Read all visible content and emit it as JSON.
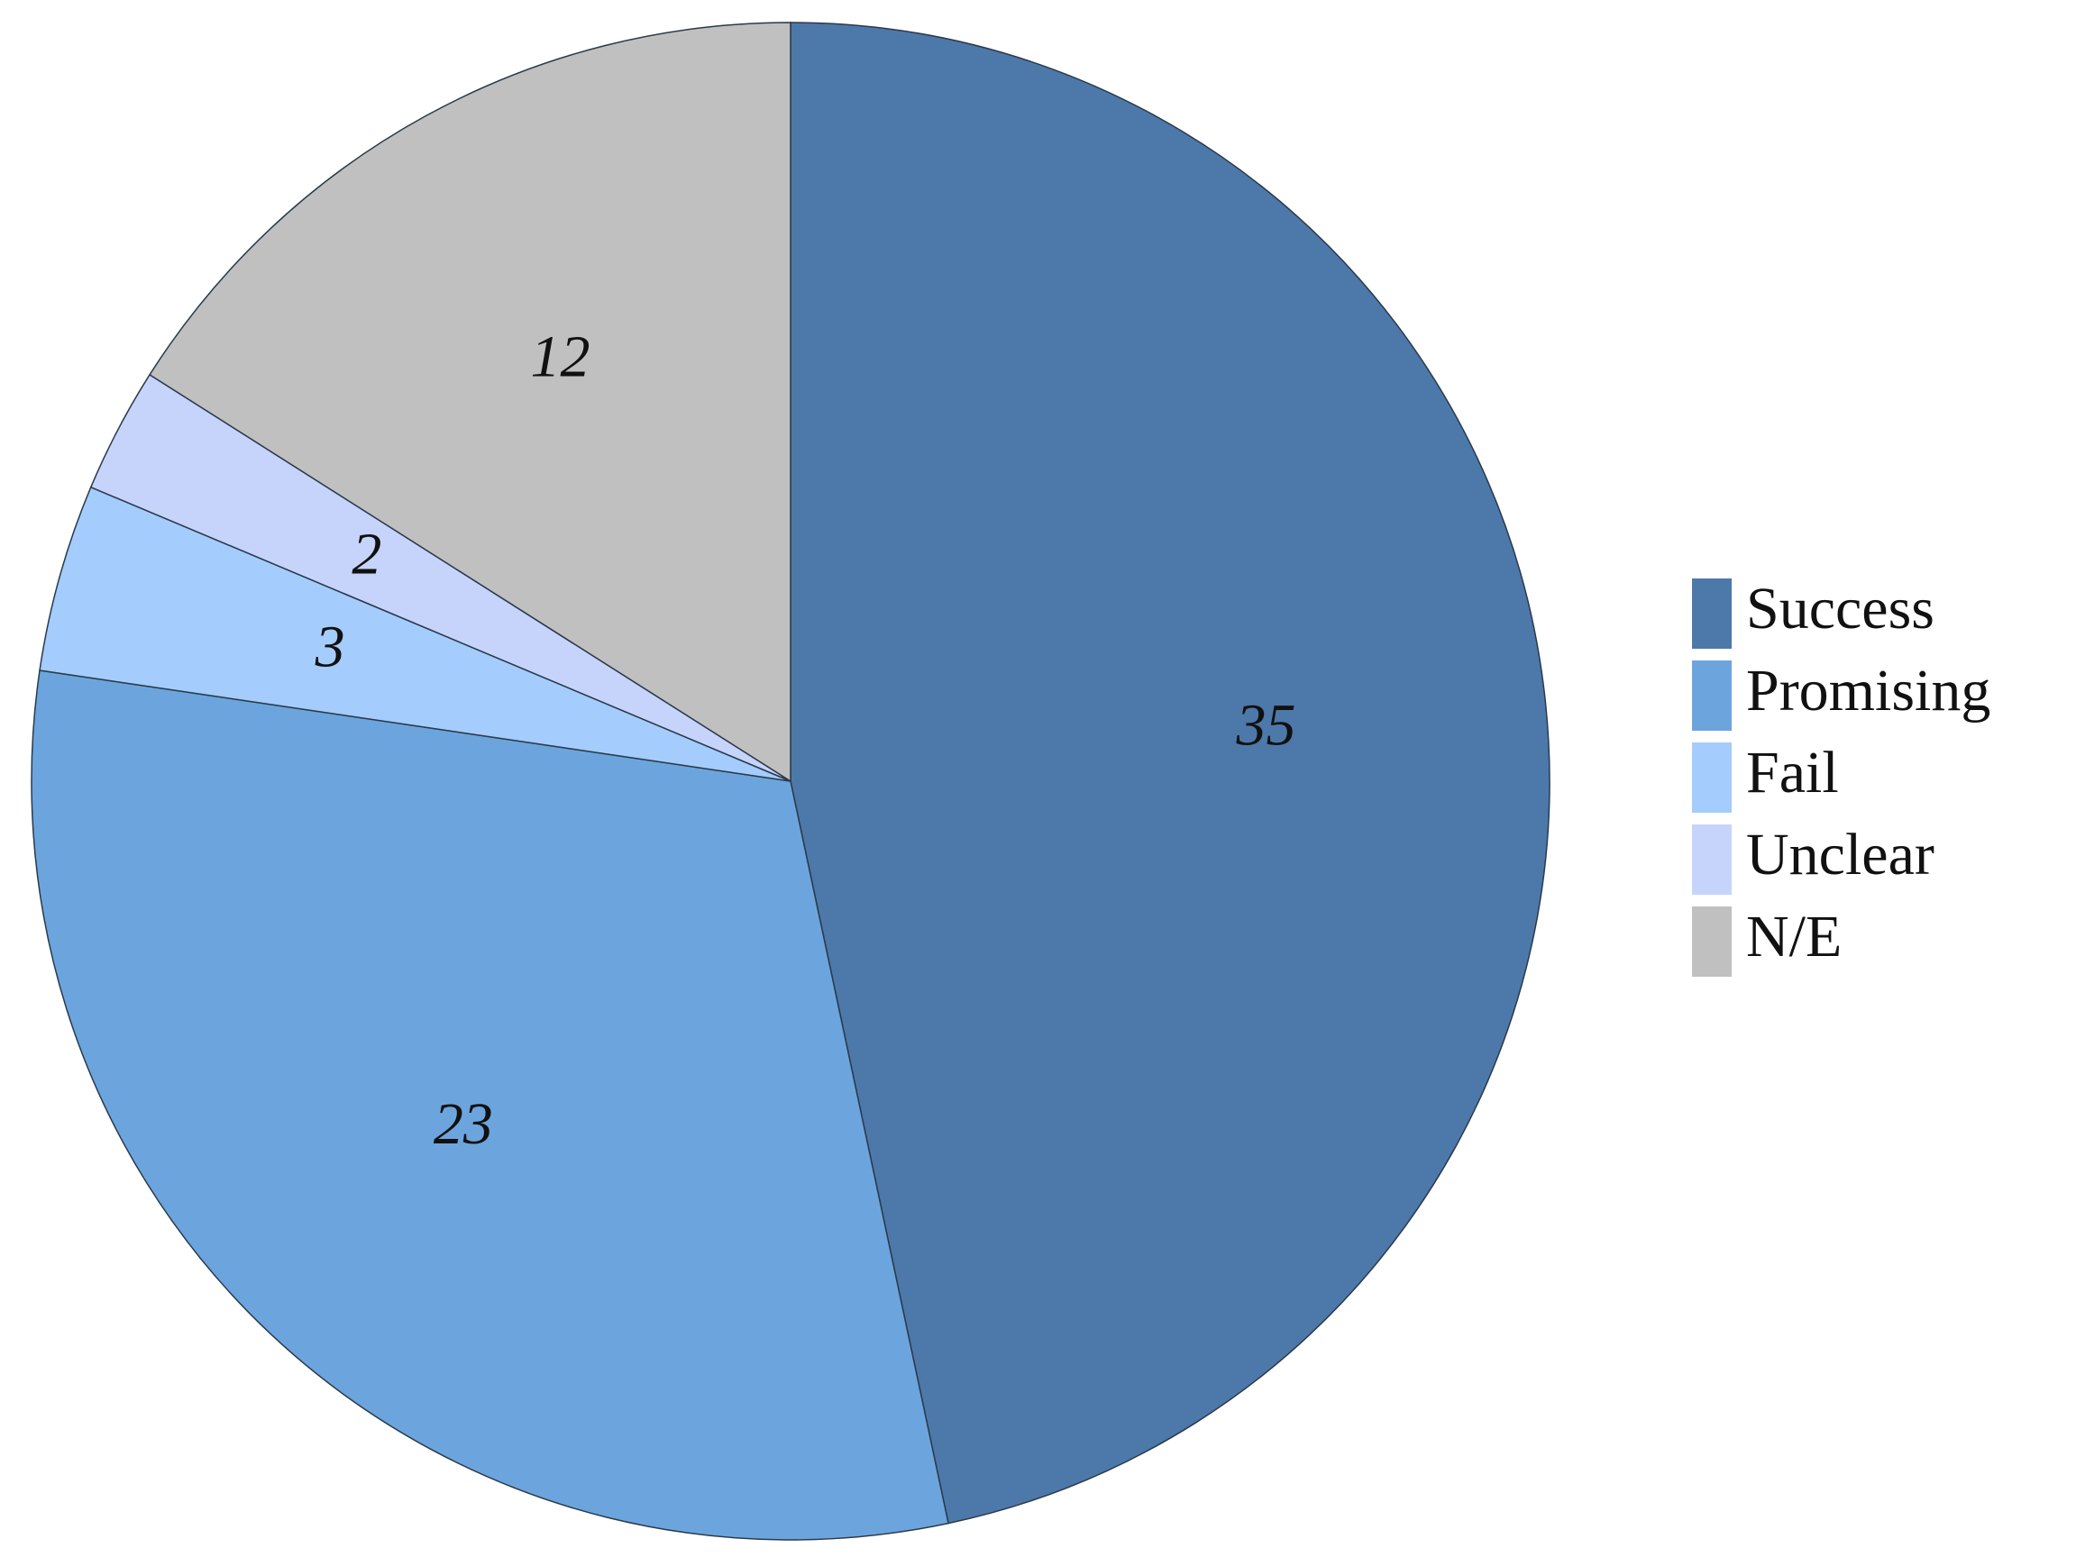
{
  "chart_data": {
    "type": "pie",
    "categories": [
      "Success",
      "Promising",
      "Fail",
      "Unclear",
      "N/E"
    ],
    "values": [
      35,
      23,
      3,
      2,
      12
    ],
    "colors": [
      "#4d78aa",
      "#6ca5dd",
      "#a4ccfc",
      "#c6d4fc",
      "#c0c0c0"
    ],
    "legend": "right"
  }
}
